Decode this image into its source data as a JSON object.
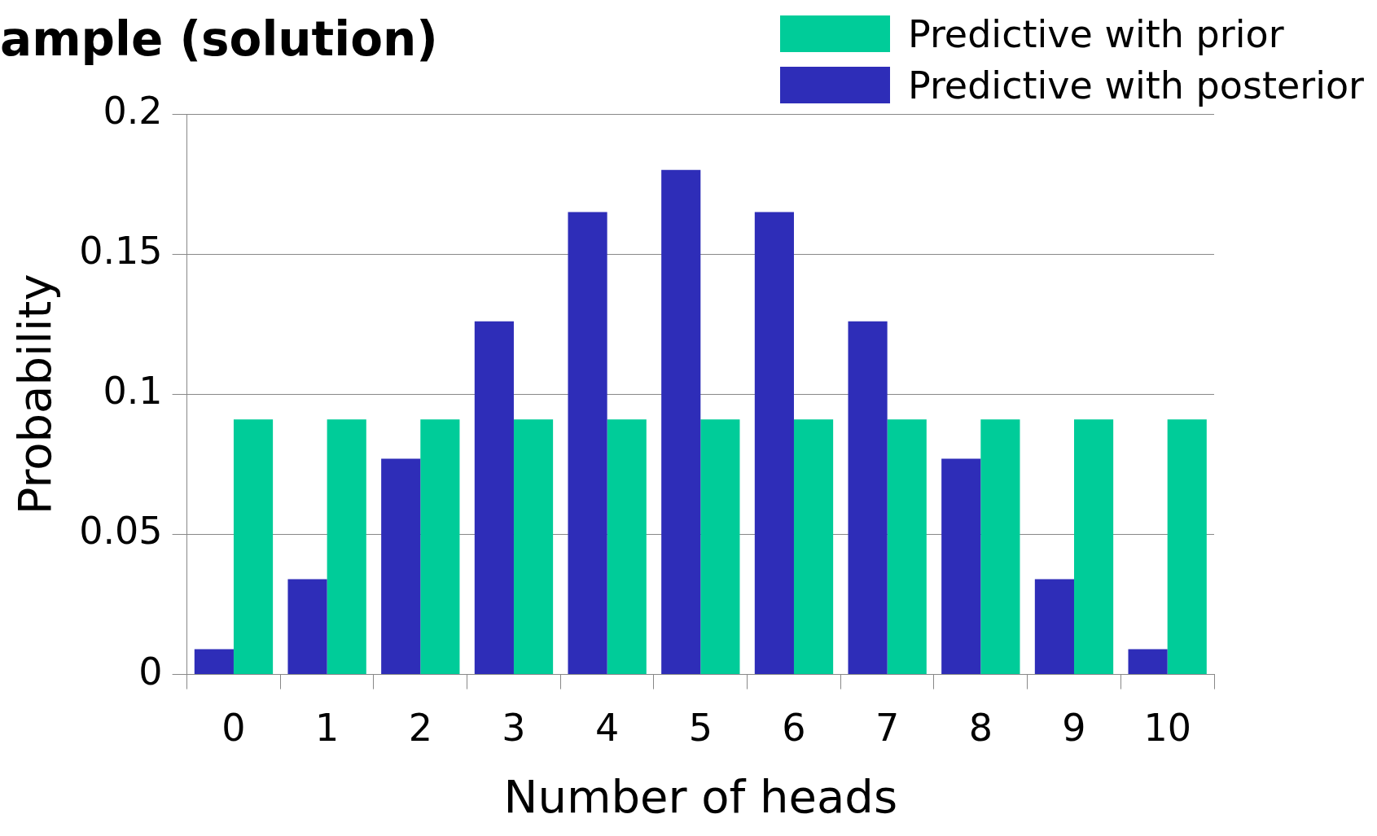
{
  "chart_data": {
    "type": "bar",
    "title": "ample (solution)",
    "xlabel": "Number of heads",
    "ylabel": "Probability",
    "categories": [
      "0",
      "1",
      "2",
      "3",
      "4",
      "5",
      "6",
      "7",
      "8",
      "9",
      "10"
    ],
    "series": [
      {
        "name": "Predictive with posterior",
        "color": "#2e2db8",
        "values": [
          0.009,
          0.034,
          0.077,
          0.126,
          0.165,
          0.18,
          0.165,
          0.126,
          0.077,
          0.034,
          0.009
        ]
      },
      {
        "name": "Predictive with prior",
        "color": "#00cc99",
        "values": [
          0.091,
          0.091,
          0.091,
          0.091,
          0.091,
          0.091,
          0.091,
          0.091,
          0.091,
          0.091,
          0.091
        ]
      }
    ],
    "ylim": [
      0,
      0.2
    ],
    "yticks": [
      0,
      0.05,
      0.1,
      0.15,
      0.2
    ],
    "grid": "y",
    "legend": "top right"
  }
}
